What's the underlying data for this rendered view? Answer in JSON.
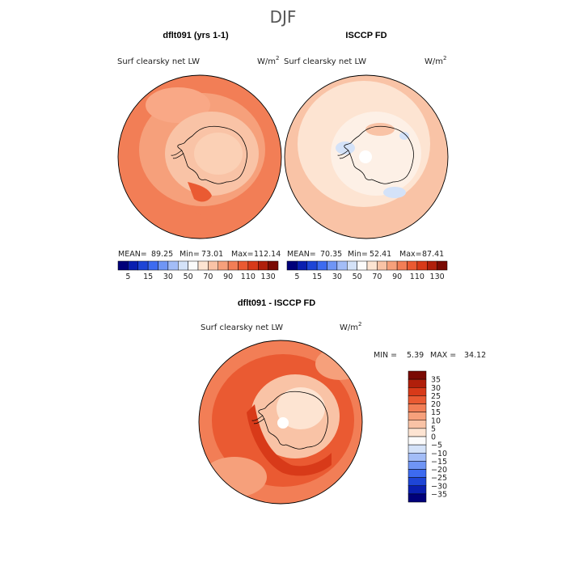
{
  "figure": {
    "title": "DJF"
  },
  "chart_data": [
    {
      "type": "heatmap",
      "title": "dflt091 (yrs 1-1)",
      "variable": "Surf clearsky net LW",
      "units": "W/m",
      "units_sup": "2",
      "projection": "south polar stereographic",
      "stats": {
        "mean_label": "MEAN=",
        "mean": "89.25",
        "min_label": "Min=",
        "min": "73.01",
        "max_label": "Max=",
        "max": "112.14"
      },
      "colorbar_ticks": [
        "5",
        "15",
        "30",
        "50",
        "70",
        "90",
        "110",
        "130"
      ],
      "colorbar_colors": [
        "#00007a",
        "#0a1fb0",
        "#1e45d6",
        "#3d6bf0",
        "#6f95f5",
        "#a3bdf7",
        "#d4e2f8",
        "#fbfbfb",
        "#fde4d2",
        "#f9c3a6",
        "#f6a07b",
        "#f27e56",
        "#ea5a32",
        "#d83a19",
        "#b01f0b",
        "#7a0a03"
      ],
      "region_values": {
        "ocean_outer": 95,
        "ocean_inner": 90,
        "antarctica": 75,
        "ross_ice_shelf": 108,
        "weddell": 82
      }
    },
    {
      "type": "heatmap",
      "title": "ISCCP FD",
      "variable": "Surf clearsky net LW",
      "units": "W/m",
      "units_sup": "2",
      "projection": "south polar stereographic",
      "stats": {
        "mean_label": "MEAN=",
        "mean": "70.35",
        "min_label": "Min=",
        "min": "52.41",
        "max_label": "Max=",
        "max": "87.41"
      },
      "colorbar_ticks": [
        "5",
        "15",
        "30",
        "50",
        "70",
        "90",
        "110",
        "130"
      ],
      "colorbar_colors": [
        "#00007a",
        "#0a1fb0",
        "#1e45d6",
        "#3d6bf0",
        "#6f95f5",
        "#a3bdf7",
        "#d4e2f8",
        "#fbfbfb",
        "#fde4d2",
        "#f9c3a6",
        "#f6a07b",
        "#f27e56",
        "#ea5a32",
        "#d83a19",
        "#b01f0b",
        "#7a0a03"
      ],
      "region_values": {
        "ocean_outer": 80,
        "ocean_inner": 70,
        "antarctica": 65,
        "polar_hole": "missing"
      }
    },
    {
      "type": "heatmap",
      "title": "dflt091 - ISCCP FD",
      "variable": "Surf clearsky net LW",
      "units": "W/m",
      "units_sup": "2",
      "projection": "south polar stereographic",
      "stats": {
        "min_label": "MIN =",
        "min": "5.39",
        "max_label": "MAX =",
        "max": "34.12"
      },
      "colorbar_ticks": [
        "35",
        "30",
        "25",
        "20",
        "15",
        "10",
        "5",
        "0",
        "−5",
        "−10",
        "−15",
        "−20",
        "−25",
        "−30",
        "−35"
      ],
      "colorbar_colors": [
        "#7a0a03",
        "#b01f0b",
        "#d83a19",
        "#ea5a32",
        "#f27e56",
        "#f6a07b",
        "#f9c3a6",
        "#fde4d2",
        "#fbfbfb",
        "#d4e2f8",
        "#a3bdf7",
        "#6f95f5",
        "#3d6bf0",
        "#1e45d6",
        "#0a1fb0",
        "#00007a"
      ],
      "region_values": {
        "ocean": 20,
        "antarctica_interior": 10,
        "coastal": 28
      }
    }
  ]
}
